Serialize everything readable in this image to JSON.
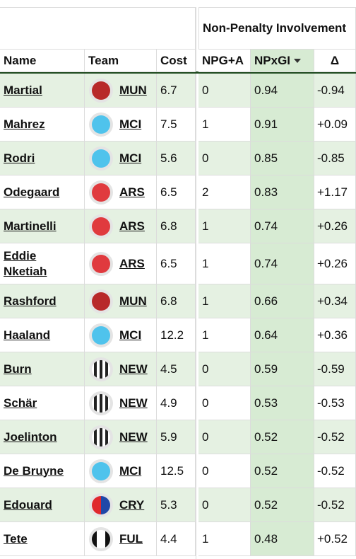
{
  "header": {
    "group": "Non-Penalty Involvement"
  },
  "table": {
    "columns": [
      "Name",
      "Team",
      "Cost",
      "NPG+A",
      "NPxGI",
      "Δ"
    ],
    "rows": [
      [
        "Martial",
        "MUN",
        "6.7",
        "0",
        "0.94",
        "-0.94"
      ],
      [
        "Mahrez",
        "MCI",
        "7.5",
        "1",
        "0.91",
        "+0.09"
      ],
      [
        "Rodri",
        "MCI",
        "5.6",
        "0",
        "0.85",
        "-0.85"
      ],
      [
        "Odegaard",
        "ARS",
        "6.5",
        "2",
        "0.83",
        "+1.17"
      ],
      [
        "Martinelli",
        "ARS",
        "6.8",
        "1",
        "0.74",
        "+0.26"
      ],
      [
        "Eddie Nketiah",
        "ARS",
        "6.5",
        "1",
        "0.74",
        "+0.26"
      ],
      [
        "Rashford",
        "MUN",
        "6.8",
        "1",
        "0.66",
        "+0.34"
      ],
      [
        "Haaland",
        "MCI",
        "12.2",
        "1",
        "0.64",
        "+0.36"
      ],
      [
        "Burn",
        "NEW",
        "4.5",
        "0",
        "0.59",
        "-0.59"
      ],
      [
        "Schär",
        "NEW",
        "4.9",
        "0",
        "0.53",
        "-0.53"
      ],
      [
        "Joelinton",
        "NEW",
        "5.9",
        "0",
        "0.52",
        "-0.52"
      ],
      [
        "De Bruyne",
        "MCI",
        "12.5",
        "0",
        "0.52",
        "-0.52"
      ],
      [
        "Edouard",
        "CRY",
        "5.3",
        "0",
        "0.52",
        "-0.52"
      ],
      [
        "Tete",
        "FUL",
        "4.4",
        "1",
        "0.48",
        "+0.52"
      ]
    ]
  }
}
